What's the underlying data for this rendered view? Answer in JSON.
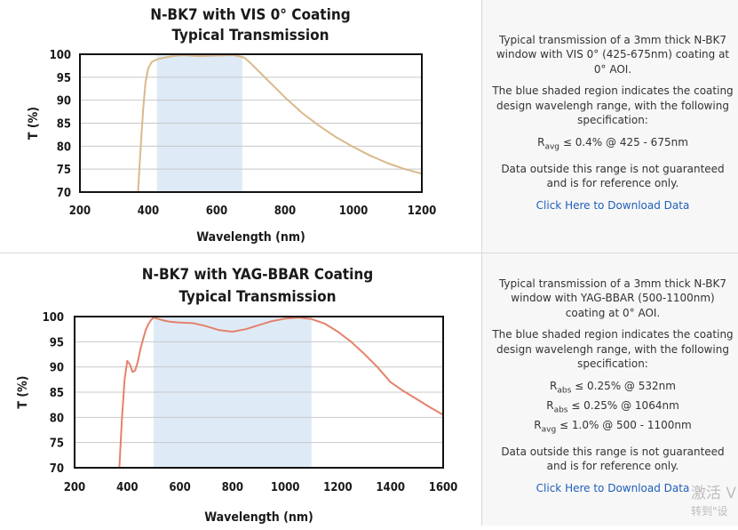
{
  "charts": [
    {
      "title_line1": "N-BK7 with VIS 0° Coating",
      "title_line2": "Typical Transmission",
      "xlabel": "Wavelength (nm)",
      "ylabel": "T (%)",
      "description": "Typical transmission of a 3mm thick N-BK7 window with VIS 0° (425-675nm) coating at 0° AOI.",
      "region_note": "The blue shaded region indicates the coating design wavelengh range, with the following specification:",
      "spec_lines": [
        {
          "symbol": "R",
          "sub": "avg",
          "text": " ≤ 0.4% @ 425 - 675nm"
        }
      ],
      "disclaimer": "Data outside this range is not guaranteed and is for reference only.",
      "download_label": "Click Here to Download Data"
    },
    {
      "title_line1": "N-BK7 with YAG-BBAR Coating",
      "title_line2": "Typical Transmission",
      "xlabel": "Wavelength (nm)",
      "ylabel": "T (%)",
      "description": "Typical transmission of a 3mm thick N-BK7 window with YAG-BBAR (500-1100nm) coating at 0° AOI.",
      "region_note": "The blue shaded region indicates the coating design wavelengh range, with the following specification:",
      "spec_lines": [
        {
          "symbol": "R",
          "sub": "abs",
          "text": " ≤ 0.25% @ 532nm"
        },
        {
          "symbol": "R",
          "sub": "abs",
          "text": " ≤ 0.25% @ 1064nm"
        },
        {
          "symbol": "R",
          "sub": "avg",
          "text": " ≤ 1.0% @ 500 - 1100nm"
        }
      ],
      "disclaimer": "Data outside this range is not guaranteed and is for reference only.",
      "download_label": "Click Here to Download Data"
    }
  ],
  "watermark": {
    "line1": "激活 V",
    "line2": "转到\"设"
  },
  "chart_data": [
    {
      "type": "line",
      "title": "N-BK7 with VIS 0° Coating Typical Transmission",
      "xlabel": "Wavelength (nm)",
      "ylabel": "T (%)",
      "xlim": [
        200,
        1200
      ],
      "ylim": [
        70,
        100
      ],
      "xticks": [
        200,
        400,
        600,
        800,
        1000,
        1200
      ],
      "yticks": [
        70,
        75,
        80,
        85,
        90,
        95,
        100
      ],
      "shaded_region": [
        425,
        675
      ],
      "grid": "horizontal",
      "color": "#d9b98c",
      "shade_color": "#deebf6",
      "series": [
        {
          "x": [
            370,
            378,
            385,
            392,
            400,
            410,
            420,
            430,
            450,
            470,
            500,
            550,
            600,
            650,
            680,
            700,
            750,
            800,
            850,
            900,
            950,
            1000,
            1050,
            1100,
            1150,
            1200
          ],
          "y": [
            70,
            80,
            88,
            94,
            97,
            98.3,
            98.7,
            99.0,
            99.3,
            99.6,
            99.8,
            99.6,
            99.7,
            99.8,
            99.3,
            98.0,
            94.3,
            90.6,
            87.2,
            84.4,
            81.9,
            79.8,
            77.9,
            76.3,
            75.0,
            74.0
          ]
        }
      ]
    },
    {
      "type": "line",
      "title": "N-BK7 with YAG-BBAR Coating Typical Transmission",
      "xlabel": "Wavelength (nm)",
      "ylabel": "T (%)",
      "xlim": [
        200,
        1600
      ],
      "ylim": [
        70,
        100
      ],
      "xticks": [
        200,
        400,
        600,
        800,
        1000,
        1200,
        1400,
        1600
      ],
      "yticks": [
        70,
        75,
        80,
        85,
        90,
        95,
        100
      ],
      "shaded_region": [
        500,
        1100
      ],
      "grid": "horizontal",
      "color": "#e5816b",
      "shade_color": "#deebf6",
      "series": [
        {
          "x": [
            370,
            380,
            390,
            400,
            410,
            420,
            430,
            440,
            450,
            460,
            470,
            480,
            490,
            500,
            520,
            540,
            560,
            600,
            650,
            700,
            750,
            800,
            850,
            900,
            950,
            1000,
            1050,
            1100,
            1150,
            1200,
            1250,
            1300,
            1350,
            1400,
            1450,
            1500,
            1550,
            1600
          ],
          "y": [
            70,
            80,
            87.5,
            91.2,
            90.5,
            89.0,
            89.3,
            91.0,
            93.5,
            95.5,
            97.3,
            98.5,
            99.3,
            99.8,
            99.5,
            99.2,
            99.0,
            98.8,
            98.7,
            98.1,
            97.3,
            97.0,
            97.5,
            98.3,
            99.1,
            99.6,
            99.8,
            99.5,
            98.6,
            97.0,
            95.0,
            92.6,
            90.0,
            87.0,
            85.2,
            83.6,
            82.0,
            80.5
          ]
        }
      ]
    }
  ]
}
